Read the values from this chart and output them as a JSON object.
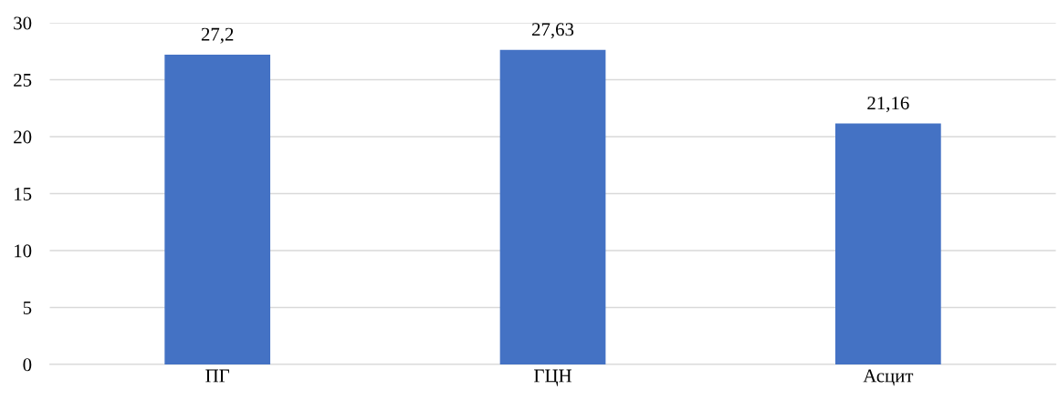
{
  "chart_data": {
    "type": "bar",
    "categories": [
      "ПГ",
      "ГЦН",
      "Асцит"
    ],
    "values": [
      27.2,
      27.63,
      21.16
    ],
    "value_labels": [
      "27,2",
      "27,63",
      "21,16"
    ],
    "color": "#4472c4",
    "ylim": [
      0,
      30
    ],
    "yticks": [
      0,
      5,
      10,
      15,
      20,
      25,
      30
    ],
    "grid": "y"
  }
}
